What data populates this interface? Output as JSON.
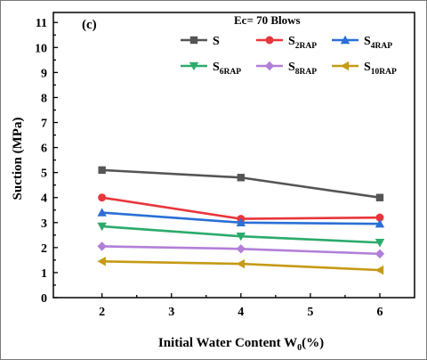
{
  "chart_data": {
    "type": "line",
    "panel_label": "(c)",
    "annotation": "Ec= 70 Blows",
    "xlabel": {
      "main": "Initial Water Content W",
      "sub": "0",
      "tail": "(%)"
    },
    "ylabel": "Suction (MPa)",
    "xlim": [
      1.3,
      6.5
    ],
    "ylim": [
      0,
      11.4
    ],
    "x": [
      2,
      4,
      6
    ],
    "xticks": [
      2,
      3,
      4,
      5,
      6
    ],
    "yticks": [
      0,
      1,
      2,
      3,
      4,
      5,
      6,
      7,
      8,
      9,
      10,
      11
    ],
    "series": [
      {
        "name": "S",
        "main": "S",
        "sub": "",
        "color": "#555555",
        "marker": "square",
        "values": [
          5.1,
          4.8,
          4.0
        ]
      },
      {
        "name": "S2RAP",
        "main": "S",
        "sub": "2RAP",
        "color": "#e8363b",
        "marker": "circle",
        "values": [
          4.0,
          3.15,
          3.2
        ]
      },
      {
        "name": "S4RAP",
        "main": "S",
        "sub": "4RAP",
        "color": "#2a6fd6",
        "marker": "triangle-up",
        "values": [
          3.4,
          3.0,
          2.95
        ]
      },
      {
        "name": "S6RAP",
        "main": "S",
        "sub": "6RAP",
        "color": "#2bab6b",
        "marker": "triangle-down",
        "values": [
          2.85,
          2.45,
          2.2
        ]
      },
      {
        "name": "S8RAP",
        "main": "S",
        "sub": "8RAP",
        "color": "#b27fd8",
        "marker": "diamond",
        "values": [
          2.05,
          1.95,
          1.75
        ]
      },
      {
        "name": "S10RAP",
        "main": "S",
        "sub": "10RAP",
        "color": "#c69a14",
        "marker": "triangle-left",
        "values": [
          1.45,
          1.35,
          1.1
        ]
      }
    ],
    "legend_position": "top-right",
    "grid": false
  }
}
